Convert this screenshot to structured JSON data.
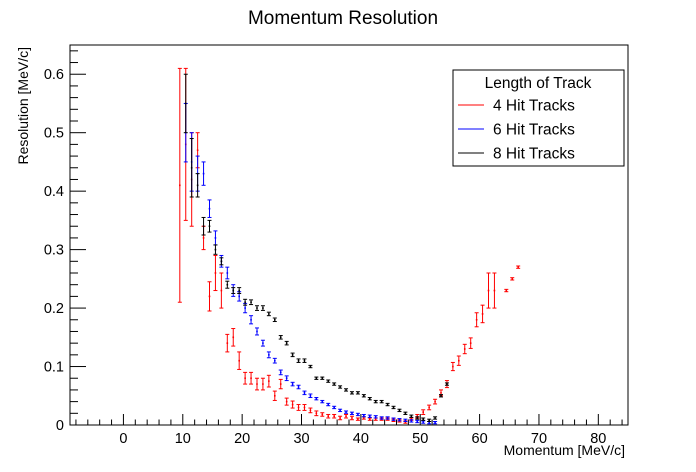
{
  "chart_data": {
    "type": "scatter",
    "title": "Momentum Resolution",
    "xlabel": "Momentum [MeV/c]",
    "ylabel": "Resolution [MeV/c]",
    "xlim": [
      -9,
      85
    ],
    "ylim": [
      0,
      0.65
    ],
    "x_ticks": [
      "0",
      "10",
      "20",
      "30",
      "40",
      "50",
      "60",
      "70",
      "80"
    ],
    "y_ticks": [
      "0",
      "0.1",
      "0.2",
      "0.3",
      "0.4",
      "0.5",
      "0.6"
    ],
    "grid": false,
    "legend": {
      "title": "Length of Track",
      "position": "top-right"
    },
    "series": [
      {
        "name": "4 Hit Tracks",
        "color": "#ff0000",
        "points": [
          [
            9.5,
            0.41,
            0.2
          ],
          [
            10.5,
            0.48,
            0.13
          ],
          [
            11.5,
            0.42,
            0.08
          ],
          [
            12.5,
            0.47,
            0.03
          ],
          [
            13.5,
            0.32,
            0.02
          ],
          [
            14.5,
            0.22,
            0.025
          ],
          [
            15.5,
            0.26,
            0.03
          ],
          [
            16.5,
            0.23,
            0.03
          ],
          [
            17.5,
            0.14,
            0.015
          ],
          [
            18.5,
            0.15,
            0.015
          ],
          [
            19.5,
            0.11,
            0.015
          ],
          [
            20.5,
            0.08,
            0.01
          ],
          [
            21.5,
            0.08,
            0.01
          ],
          [
            22.5,
            0.07,
            0.01
          ],
          [
            23.5,
            0.07,
            0.01
          ],
          [
            24.5,
            0.075,
            0.01
          ],
          [
            25.5,
            0.05,
            0.008
          ],
          [
            26.5,
            0.07,
            0.008
          ],
          [
            27.5,
            0.04,
            0.006
          ],
          [
            28.5,
            0.035,
            0.006
          ],
          [
            29.5,
            0.03,
            0.005
          ],
          [
            30.5,
            0.03,
            0.005
          ],
          [
            31.5,
            0.025,
            0.004
          ],
          [
            32.5,
            0.02,
            0.004
          ],
          [
            33.5,
            0.018,
            0.003
          ],
          [
            34.5,
            0.015,
            0.003
          ],
          [
            35.5,
            0.015,
            0.003
          ],
          [
            36.5,
            0.012,
            0.003
          ],
          [
            37.5,
            0.015,
            0.003
          ],
          [
            38.5,
            0.012,
            0.003
          ],
          [
            39.5,
            0.01,
            0.002
          ],
          [
            40.5,
            0.012,
            0.002
          ],
          [
            41.5,
            0.01,
            0.002
          ],
          [
            42.5,
            0.01,
            0.002
          ],
          [
            43.5,
            0.01,
            0.002
          ],
          [
            44.5,
            0.01,
            0.002
          ],
          [
            45.5,
            0.008,
            0.002
          ],
          [
            46.5,
            0.007,
            0.002
          ],
          [
            47.5,
            0.005,
            0.002
          ],
          [
            48.5,
            0.01,
            0.002
          ],
          [
            49.5,
            0.015,
            0.003
          ],
          [
            50.5,
            0.022,
            0.004
          ],
          [
            51.5,
            0.03,
            0.004
          ],
          [
            52.5,
            0.04,
            0.004
          ],
          [
            53.5,
            0.055,
            0.005
          ],
          [
            54.5,
            0.07,
            0.006
          ],
          [
            55.5,
            0.1,
            0.007
          ],
          [
            56.5,
            0.11,
            0.008
          ],
          [
            57.5,
            0.13,
            0.008
          ],
          [
            58.5,
            0.14,
            0.009
          ],
          [
            59.5,
            0.18,
            0.012
          ],
          [
            60.5,
            0.19,
            0.015
          ],
          [
            61.5,
            0.23,
            0.03
          ],
          [
            62.5,
            0.23,
            0.03
          ],
          [
            64.5,
            0.23,
            0.002
          ],
          [
            65.5,
            0.25,
            0.002
          ],
          [
            66.5,
            0.27,
            0.002
          ]
        ]
      },
      {
        "name": "6 Hit Tracks",
        "color": "#0000ff",
        "points": [
          [
            10.5,
            0.5,
            0.05
          ],
          [
            11.5,
            0.45,
            0.05
          ],
          [
            12.5,
            0.43,
            0.03
          ],
          [
            13.5,
            0.43,
            0.02
          ],
          [
            14.5,
            0.37,
            0.015
          ],
          [
            15.5,
            0.32,
            0.012
          ],
          [
            16.5,
            0.28,
            0.01
          ],
          [
            17.5,
            0.26,
            0.01
          ],
          [
            18.5,
            0.23,
            0.01
          ],
          [
            19.5,
            0.22,
            0.008
          ],
          [
            20.5,
            0.2,
            0.008
          ],
          [
            21.5,
            0.18,
            0.007
          ],
          [
            22.5,
            0.16,
            0.006
          ],
          [
            23.5,
            0.14,
            0.005
          ],
          [
            24.5,
            0.12,
            0.005
          ],
          [
            25.5,
            0.11,
            0.004
          ],
          [
            26.5,
            0.09,
            0.004
          ],
          [
            27.5,
            0.08,
            0.004
          ],
          [
            28.5,
            0.07,
            0.003
          ],
          [
            29.5,
            0.065,
            0.003
          ],
          [
            30.5,
            0.055,
            0.003
          ],
          [
            31.5,
            0.05,
            0.003
          ],
          [
            32.5,
            0.045,
            0.002
          ],
          [
            33.5,
            0.04,
            0.002
          ],
          [
            34.5,
            0.035,
            0.002
          ],
          [
            35.5,
            0.03,
            0.002
          ],
          [
            36.5,
            0.025,
            0.002
          ],
          [
            37.5,
            0.022,
            0.002
          ],
          [
            38.5,
            0.02,
            0.002
          ],
          [
            39.5,
            0.018,
            0.002
          ],
          [
            40.5,
            0.016,
            0.002
          ],
          [
            41.5,
            0.015,
            0.002
          ],
          [
            42.5,
            0.014,
            0.002
          ],
          [
            43.5,
            0.012,
            0.002
          ],
          [
            44.5,
            0.012,
            0.002
          ],
          [
            45.5,
            0.01,
            0.002
          ],
          [
            46.5,
            0.009,
            0.002
          ],
          [
            47.5,
            0.008,
            0.002
          ],
          [
            48.5,
            0.007,
            0.002
          ],
          [
            49.5,
            0.006,
            0.002
          ],
          [
            50.5,
            0.005,
            0.002
          ],
          [
            51.5,
            0.004,
            0.002
          ],
          [
            52.5,
            0.004,
            0.002
          ]
        ]
      },
      {
        "name": "8 Hit Tracks",
        "color": "#000000",
        "points": [
          [
            10.5,
            0.55,
            0.05
          ],
          [
            11.5,
            0.44,
            0.05
          ],
          [
            12.5,
            0.41,
            0.02
          ],
          [
            13.5,
            0.34,
            0.015
          ],
          [
            14.5,
            0.34,
            0.01
          ],
          [
            15.5,
            0.3,
            0.008
          ],
          [
            16.5,
            0.28,
            0.006
          ],
          [
            17.5,
            0.24,
            0.006
          ],
          [
            18.5,
            0.23,
            0.005
          ],
          [
            19.5,
            0.23,
            0.005
          ],
          [
            20.5,
            0.21,
            0.005
          ],
          [
            21.5,
            0.21,
            0.004
          ],
          [
            22.5,
            0.2,
            0.004
          ],
          [
            23.5,
            0.2,
            0.004
          ],
          [
            24.5,
            0.19,
            0.003
          ],
          [
            25.5,
            0.18,
            0.003
          ],
          [
            26.5,
            0.15,
            0.003
          ],
          [
            27.5,
            0.14,
            0.003
          ],
          [
            28.5,
            0.12,
            0.003
          ],
          [
            29.5,
            0.11,
            0.003
          ],
          [
            30.5,
            0.11,
            0.003
          ],
          [
            31.5,
            0.1,
            0.002
          ],
          [
            32.5,
            0.08,
            0.002
          ],
          [
            33.5,
            0.08,
            0.002
          ],
          [
            34.5,
            0.075,
            0.002
          ],
          [
            35.5,
            0.07,
            0.002
          ],
          [
            36.5,
            0.065,
            0.002
          ],
          [
            37.5,
            0.06,
            0.002
          ],
          [
            38.5,
            0.055,
            0.002
          ],
          [
            39.5,
            0.055,
            0.002
          ],
          [
            40.5,
            0.05,
            0.002
          ],
          [
            41.5,
            0.045,
            0.002
          ],
          [
            42.5,
            0.04,
            0.002
          ],
          [
            43.5,
            0.04,
            0.002
          ],
          [
            44.5,
            0.035,
            0.002
          ],
          [
            45.5,
            0.03,
            0.002
          ],
          [
            46.5,
            0.025,
            0.002
          ],
          [
            47.5,
            0.02,
            0.002
          ],
          [
            48.5,
            0.015,
            0.002
          ],
          [
            49.5,
            0.012,
            0.002
          ],
          [
            50.5,
            0.01,
            0.002
          ],
          [
            51.5,
            0.008,
            0.002
          ],
          [
            52.5,
            0.012,
            0.002
          ],
          [
            53.5,
            0.05,
            0.002
          ],
          [
            54.5,
            0.07,
            0.002
          ]
        ]
      }
    ]
  }
}
